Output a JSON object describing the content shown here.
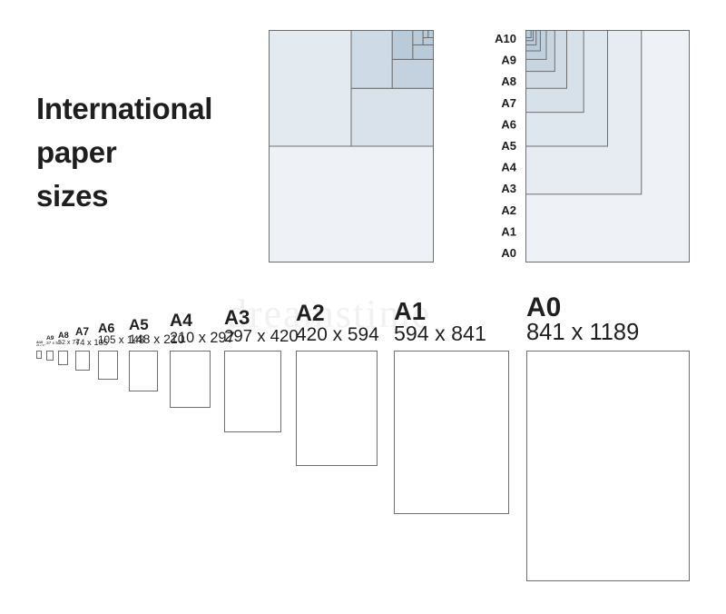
{
  "title": [
    "International",
    "paper",
    "sizes"
  ],
  "watermark": "dreamstime",
  "nested_labels": [
    "A10",
    "A9",
    "A8",
    "A7",
    "A6",
    "A5",
    "A4",
    "A3",
    "A2",
    "A1",
    "A0"
  ],
  "sizes": [
    {
      "name": "A10",
      "dims": "26 x 37"
    },
    {
      "name": "A9",
      "dims": "37 x 52"
    },
    {
      "name": "A8",
      "dims": "52 x 74"
    },
    {
      "name": "A7",
      "dims": "74 x 105"
    },
    {
      "name": "A6",
      "dims": "105 x 148"
    },
    {
      "name": "A5",
      "dims": "148 x 210"
    },
    {
      "name": "A4",
      "dims": "210 x 297"
    },
    {
      "name": "A3",
      "dims": "297 x 420"
    },
    {
      "name": "A2",
      "dims": "420 x 594"
    },
    {
      "name": "A1",
      "dims": "594 x 841"
    },
    {
      "name": "A0",
      "dims": "841 x 1189"
    }
  ],
  "colors": {
    "fill_light": "#eef2f6",
    "fill_dark": "#b9cad9",
    "border": "#6e6e6e",
    "text": "#1e1e1e"
  }
}
